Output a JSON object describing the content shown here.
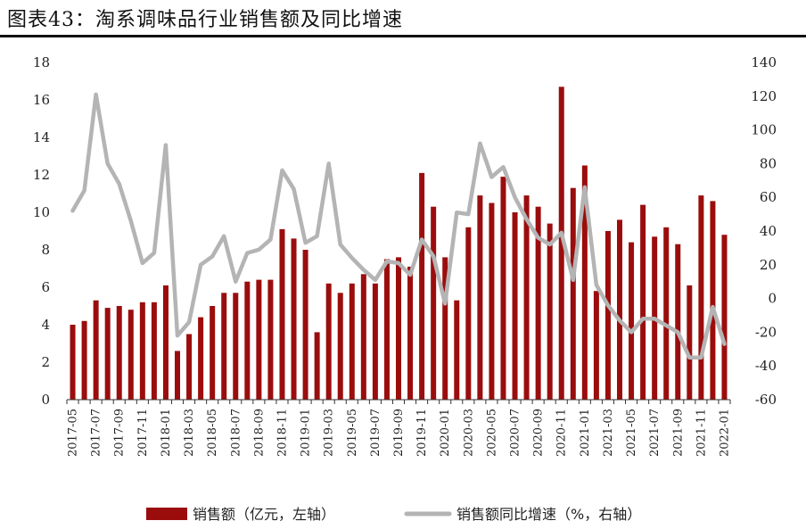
{
  "title": "图表43：淘系调味品行业销售额及同比增速",
  "chart_data": {
    "type": "bar+line",
    "categories": [
      "2017-05",
      "2017-06",
      "2017-07",
      "2017-08",
      "2017-09",
      "2017-10",
      "2017-11",
      "2017-12",
      "2018-01",
      "2018-02",
      "2018-03",
      "2018-04",
      "2018-05",
      "2018-06",
      "2018-07",
      "2018-08",
      "2018-09",
      "2018-10",
      "2018-11",
      "2018-12",
      "2019-01",
      "2019-02",
      "2019-03",
      "2019-04",
      "2019-05",
      "2019-06",
      "2019-07",
      "2019-08",
      "2019-09",
      "2019-10",
      "2019-11",
      "2019-12",
      "2020-01",
      "2020-02",
      "2020-03",
      "2020-04",
      "2020-05",
      "2020-06",
      "2020-07",
      "2020-08",
      "2020-09",
      "2020-10",
      "2020-11",
      "2020-12",
      "2021-01",
      "2021-02",
      "2021-03",
      "2021-04",
      "2021-05",
      "2021-06",
      "2021-07",
      "2021-08",
      "2021-09",
      "2021-10",
      "2021-11",
      "2021-12",
      "2022-01"
    ],
    "x_tick_labels": [
      "2017-05",
      "2017-07",
      "2017-09",
      "2017-11",
      "2018-01",
      "2018-03",
      "2018-05",
      "2018-07",
      "2018-09",
      "2018-11",
      "2019-01",
      "2019-03",
      "2019-05",
      "2019-07",
      "2019-09",
      "2019-11",
      "2020-01",
      "2020-03",
      "2020-05",
      "2020-07",
      "2020-09",
      "2020-11",
      "2021-01",
      "2021-03",
      "2021-05",
      "2021-07",
      "2021-09",
      "2021-11",
      "2022-01"
    ],
    "series": [
      {
        "name": "销售额（亿元，左轴）",
        "type": "bar",
        "axis": "left",
        "color": "#9B0D0D",
        "values": [
          4.0,
          4.2,
          5.3,
          4.9,
          5.0,
          4.8,
          5.2,
          5.2,
          6.1,
          2.6,
          3.5,
          4.4,
          5.0,
          5.7,
          5.7,
          6.3,
          6.4,
          6.4,
          9.1,
          8.6,
          8.0,
          3.6,
          6.2,
          5.7,
          6.2,
          6.7,
          6.2,
          7.5,
          7.6,
          7.1,
          12.1,
          10.3,
          7.6,
          5.3,
          9.2,
          10.9,
          10.5,
          11.9,
          10.0,
          10.9,
          10.3,
          9.4,
          16.7,
          11.3,
          12.5,
          5.8,
          9.0,
          9.6,
          8.4,
          10.4,
          8.7,
          9.2,
          8.3,
          6.1,
          10.9,
          10.6,
          8.8
        ]
      },
      {
        "name": "销售额同比增速（%，右轴）",
        "type": "line",
        "axis": "right",
        "color": "#B4B4B4",
        "values": [
          52,
          64,
          121,
          80,
          68,
          46,
          21,
          27,
          91,
          -22,
          -14,
          20,
          25,
          37,
          10,
          27,
          29,
          35,
          76,
          65,
          33,
          37,
          80,
          32,
          24,
          17,
          11,
          22,
          21,
          14,
          35,
          25,
          -3,
          51,
          50,
          92,
          72,
          78,
          60,
          47,
          36,
          32,
          39,
          11,
          66,
          8,
          -4,
          -13,
          -20,
          -12,
          -12,
          -16,
          -20,
          -35,
          -35,
          -5,
          -27
        ]
      }
    ],
    "left_axis": {
      "min": 0,
      "max": 18,
      "ticks": [
        0,
        2,
        4,
        6,
        8,
        10,
        12,
        14,
        16,
        18
      ]
    },
    "right_axis": {
      "min": -60,
      "max": 140,
      "ticks": [
        -60,
        -40,
        -20,
        0,
        20,
        40,
        60,
        80,
        100,
        120,
        140
      ]
    },
    "legend": {
      "placement": "bottom",
      "bar_label": "销售额（亿元，左轴）",
      "line_label": "销售额同比增速（%，右轴）"
    },
    "grid": false
  }
}
